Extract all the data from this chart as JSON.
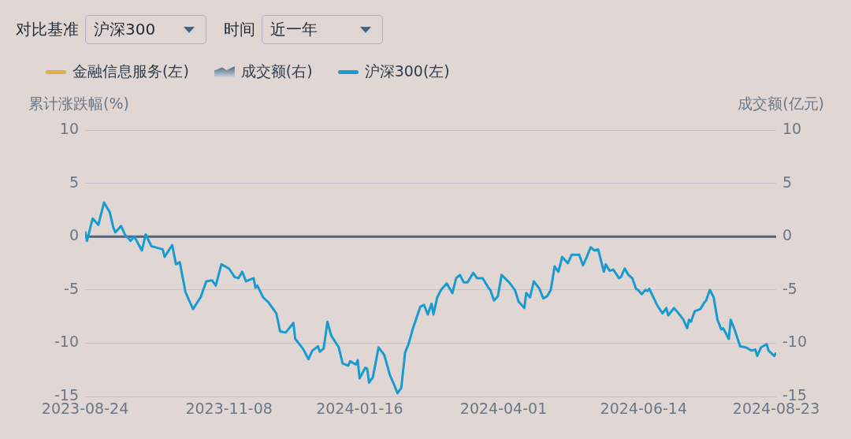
{
  "chart_data": {
    "type": "line",
    "ylabel": "累计涨跌幅(%)",
    "y2label": "成交额(亿元)",
    "annotations": [
      "对比基准",
      "沪深300",
      "时间",
      "近一年"
    ],
    "legend": "top left",
    "grid": "y",
    "ref_lines": [
      {
        "axis": "y",
        "value": 0,
        "color": "#4a6580"
      }
    ],
    "xlim": [
      "2023-08-24",
      "2024-08-23"
    ],
    "xticks": [
      "2023-08-24",
      "2023-11-08",
      "2024-01-16",
      "2024-04-01",
      "2024-06-14",
      "2024-08-23"
    ],
    "ylim": [
      -15,
      10
    ],
    "yticks": [
      -15,
      -10,
      -5,
      0,
      5,
      10
    ],
    "y2lim": [
      -15,
      10
    ],
    "y2ticks": [
      -15,
      -10,
      -5,
      0,
      5,
      10
    ],
    "x": [
      "2023-08-24",
      "2023-08-25",
      "2023-08-28",
      "2023-08-31",
      "2023-09-03",
      "2023-09-06",
      "2023-09-08",
      "2023-09-09",
      "2023-09-12",
      "2023-09-14",
      "2023-09-17",
      "2023-09-19",
      "2023-09-23",
      "2023-09-25",
      "2023-09-28",
      "2023-10-04",
      "2023-10-05",
      "2023-10-09",
      "2023-10-11",
      "2023-10-13",
      "2023-10-16",
      "2023-10-20",
      "2023-10-24",
      "2023-10-27",
      "2023-10-30",
      "2023-11-01",
      "2023-11-04",
      "2023-11-08",
      "2023-11-11",
      "2023-11-13",
      "2023-11-15",
      "2023-11-17",
      "2023-11-21",
      "2023-11-22",
      "2023-11-23",
      "2023-11-26",
      "2023-11-29",
      "2023-12-03",
      "2023-12-05",
      "2023-12-08",
      "2023-12-12",
      "2023-12-13",
      "2023-12-17",
      "2023-12-20",
      "2023-12-22",
      "2023-12-25",
      "2023-12-26",
      "2023-12-28",
      "2023-12-30",
      "2024-01-01",
      "2024-01-05",
      "2024-01-07",
      "2024-01-10",
      "2024-01-11",
      "2024-01-14",
      "2024-01-15",
      "2024-01-16",
      "2024-01-19",
      "2024-01-20",
      "2024-01-21",
      "2024-01-23",
      "2024-01-26",
      "2024-01-29",
      "2024-02-01",
      "2024-02-03",
      "2024-02-05",
      "2024-02-07",
      "2024-02-09",
      "2024-02-11",
      "2024-02-13",
      "2024-02-17",
      "2024-02-19",
      "2024-02-21",
      "2024-02-23",
      "2024-02-24",
      "2024-02-26",
      "2024-02-28",
      "2024-03-02",
      "2024-03-05",
      "2024-03-07",
      "2024-03-09",
      "2024-03-11",
      "2024-03-13",
      "2024-03-16",
      "2024-03-18",
      "2024-03-21",
      "2024-03-24",
      "2024-03-25",
      "2024-03-27",
      "2024-03-29",
      "2024-03-31",
      "2024-04-04",
      "2024-04-07",
      "2024-04-09",
      "2024-04-12",
      "2024-04-13",
      "2024-04-15",
      "2024-04-17",
      "2024-04-20",
      "2024-04-22",
      "2024-04-24",
      "2024-04-26",
      "2024-04-28",
      "2024-04-30",
      "2024-05-02",
      "2024-05-05",
      "2024-05-07",
      "2024-05-11",
      "2024-05-13",
      "2024-05-15",
      "2024-05-17",
      "2024-05-19",
      "2024-05-21",
      "2024-05-24",
      "2024-05-25",
      "2024-05-27",
      "2024-05-29",
      "2024-06-01",
      "2024-06-02",
      "2024-06-04",
      "2024-06-06",
      "2024-06-08",
      "2024-06-10",
      "2024-06-11",
      "2024-06-13",
      "2024-06-15",
      "2024-06-16",
      "2024-06-17",
      "2024-06-20",
      "2024-06-21",
      "2024-06-24",
      "2024-06-26",
      "2024-06-27",
      "2024-06-30",
      "2024-07-02",
      "2024-07-05",
      "2024-07-07",
      "2024-07-08",
      "2024-07-09",
      "2024-07-11",
      "2024-07-14",
      "2024-07-16",
      "2024-07-17",
      "2024-07-19",
      "2024-07-21",
      "2024-07-23",
      "2024-07-25",
      "2024-07-26",
      "2024-07-29",
      "2024-07-30",
      "2024-08-01",
      "2024-08-04",
      "2024-08-07",
      "2024-08-10",
      "2024-08-12",
      "2024-08-13",
      "2024-08-15",
      "2024-08-18",
      "2024-08-19",
      "2024-08-22",
      "2024-08-23"
    ],
    "series": [
      {
        "name": "金融信息服务(左)",
        "type": "line",
        "color": "#e0b050",
        "values": [
          null,
          null,
          null,
          null,
          null,
          null,
          null,
          null,
          null,
          null,
          null,
          null,
          null,
          null,
          null,
          null,
          null,
          null,
          null,
          null,
          null,
          null,
          null,
          null,
          null,
          null,
          null,
          null,
          null,
          null,
          null,
          null,
          null,
          null,
          null,
          null,
          null,
          null,
          null,
          null,
          null,
          null,
          null,
          null,
          null,
          null,
          null,
          null,
          null,
          null,
          null,
          null,
          null,
          null,
          null,
          null,
          null,
          null,
          null,
          null,
          null,
          null,
          null,
          null,
          null,
          null,
          null,
          null,
          null,
          null,
          null,
          null,
          null,
          null,
          null,
          null,
          null,
          null,
          null,
          null,
          null,
          null,
          null,
          null,
          null,
          null,
          null,
          null,
          null,
          null,
          null,
          null,
          null,
          null,
          null,
          null,
          null,
          null,
          null,
          null,
          null,
          null,
          null,
          null,
          null,
          null,
          null,
          null,
          null,
          null,
          null,
          null,
          null,
          null,
          null,
          null,
          null,
          null,
          null,
          null,
          null,
          null,
          null,
          null,
          null,
          null,
          null,
          null,
          null,
          null,
          null,
          null,
          null,
          null,
          null,
          null,
          null,
          null,
          null,
          null,
          null,
          null,
          null,
          null,
          null,
          null,
          null,
          null,
          null,
          null,
          null,
          null,
          null,
          null,
          null,
          null,
          null,
          null,
          null,
          null,
          null
        ]
      },
      {
        "name": "成交额(右)",
        "type": "area",
        "color": "#4a6580",
        "values": [
          null,
          null,
          null,
          null,
          null,
          null,
          null,
          null,
          null,
          null,
          null,
          null,
          null,
          null,
          null,
          null,
          null,
          null,
          null,
          null,
          null,
          null,
          null,
          null,
          null,
          null,
          null,
          null,
          null,
          null,
          null,
          null,
          null,
          null,
          null,
          null,
          null,
          null,
          null,
          null,
          null,
          null,
          null,
          null,
          null,
          null,
          null,
          null,
          null,
          null,
          null,
          null,
          null,
          null,
          null,
          null,
          null,
          null,
          null,
          null,
          null,
          null,
          null,
          null,
          null,
          null,
          null,
          null,
          null,
          null,
          null,
          null,
          null,
          null,
          null,
          null,
          null,
          null,
          null,
          null,
          null,
          null,
          null,
          null,
          null,
          null,
          null,
          null,
          null,
          null,
          null,
          null,
          null,
          null,
          null,
          null,
          null,
          null,
          null,
          null,
          null,
          null,
          null,
          null,
          null,
          null,
          null,
          null,
          null,
          null,
          null,
          null,
          null,
          null,
          null,
          null,
          null,
          null,
          null,
          null,
          null,
          null,
          null,
          null,
          null,
          null,
          null,
          null,
          null,
          null,
          null,
          null,
          null,
          null,
          null,
          null,
          null,
          null,
          null,
          null,
          null,
          null,
          null,
          null,
          null,
          null,
          null,
          null,
          null,
          null,
          null,
          null,
          null,
          null,
          null,
          null,
          null,
          null,
          null,
          null,
          null
        ]
      },
      {
        "name": "沪深300(左)",
        "color": "#1a9bd0",
        "values": [
          0.5,
          -0.4,
          1.7,
          1.1,
          3.2,
          2.3,
          0.8,
          0.4,
          1.0,
          0.2,
          -0.4,
          0,
          -1.3,
          0.2,
          -0.9,
          -1.2,
          -1.9,
          -0.8,
          -2.6,
          -2.4,
          -5.2,
          -6.8,
          -5.7,
          -4.2,
          -4.1,
          -4.6,
          -2.6,
          -3.0,
          -3.8,
          -3.9,
          -3.3,
          -4.2,
          -3.9,
          -4.8,
          -4.6,
          -5.7,
          -6.2,
          -7.2,
          -8.9,
          -9.0,
          -8.1,
          -9.6,
          -10.5,
          -11.5,
          -10.7,
          -10.3,
          -10.8,
          -10.5,
          -8.0,
          -9.3,
          -10.4,
          -11.9,
          -12.1,
          -11.7,
          -12.0,
          -11.6,
          -13.3,
          -12.3,
          -12.4,
          -13.7,
          -13.2,
          -10.4,
          -11.1,
          -13.0,
          -13.8,
          -14.7,
          -14.2,
          -10.9,
          -10.0,
          -8.7,
          -6.6,
          -6.4,
          -7.3,
          -6.3,
          -7.3,
          -5.7,
          -5.0,
          -4.4,
          -5.3,
          -3.9,
          -3.6,
          -4.3,
          -4.3,
          -3.4,
          -3.9,
          -3.9,
          -4.8,
          -5.0,
          -6.0,
          -5.6,
          -3.6,
          -4.3,
          -5.0,
          -6.1,
          -6.7,
          -5.3,
          -5.7,
          -4.2,
          -4.9,
          -5.8,
          -5.6,
          -5.0,
          -2.8,
          -3.3,
          -1.9,
          -2.5,
          -1.7,
          -1.7,
          -2.7,
          -1.9,
          -1.0,
          -1.3,
          -1.2,
          -3.3,
          -2.6,
          -3.2,
          -3.1,
          -3.9,
          -3.8,
          -3.0,
          -3.6,
          -3.9,
          -4.9,
          -5.0,
          -5.4,
          -5.0,
          -5.1,
          -4.9,
          -6.0,
          -6.4,
          -7.2,
          -6.7,
          -7.4,
          -6.7,
          -7.1,
          -7.8,
          -8.6,
          -7.8,
          -8.0,
          -7.0,
          -6.8,
          -6.2,
          -6.0,
          -5.0,
          -5.7,
          -7.8,
          -8.7,
          -8.6,
          -9.6,
          -7.8,
          -8.7,
          -10.3,
          -10.4,
          -10.7,
          -10.6,
          -11.2,
          -10.4,
          -10.1,
          -10.7,
          -11.2,
          -10.9
        ]
      }
    ]
  }
}
